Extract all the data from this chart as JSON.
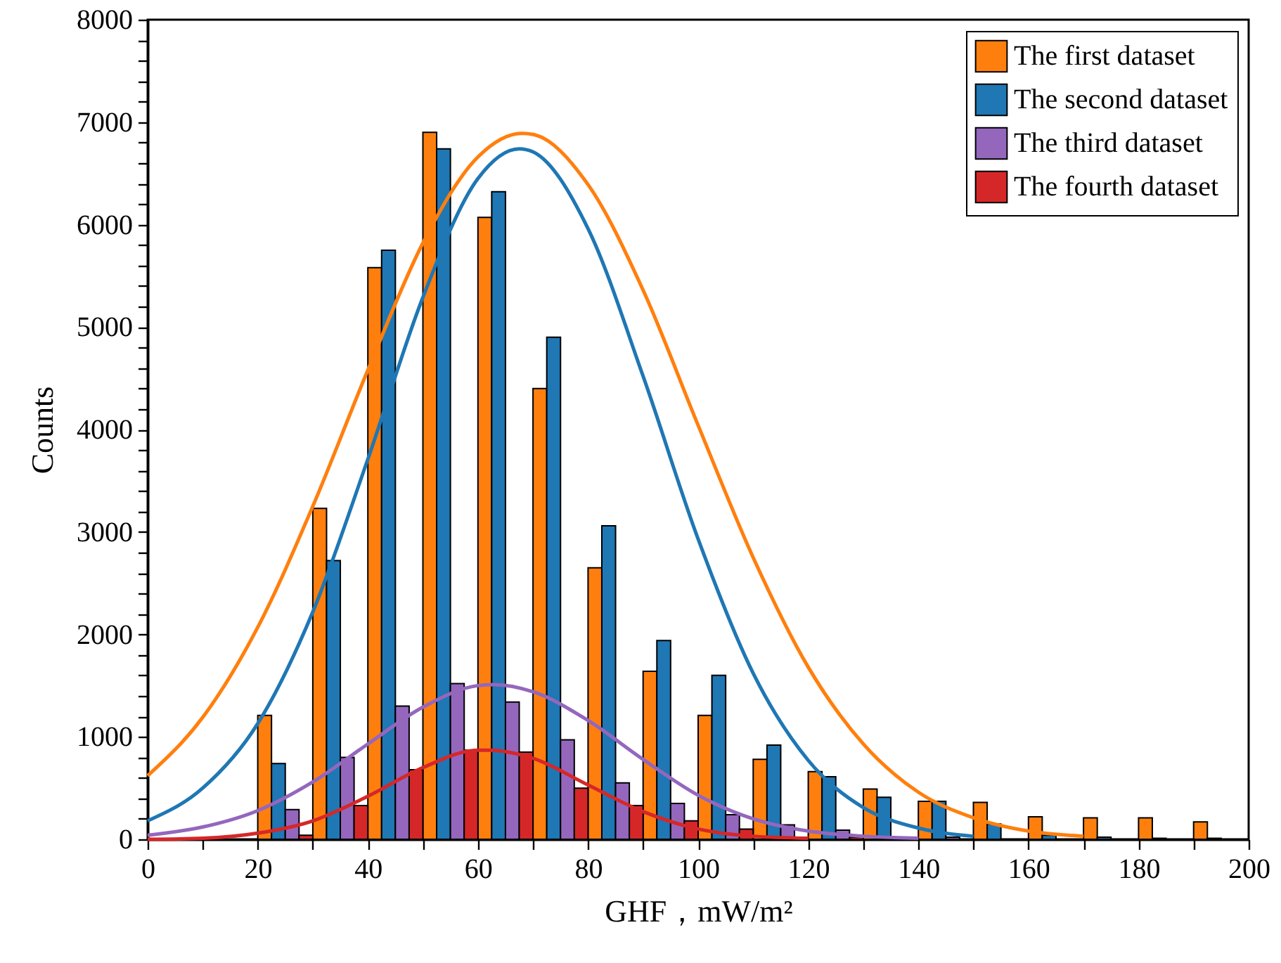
{
  "chart_data": {
    "type": "histogram",
    "xlabel": "GHF，mW/m²",
    "ylabel": "Counts",
    "bins": [
      20,
      30,
      40,
      50,
      60,
      70,
      80,
      90,
      100,
      110,
      120,
      130,
      140,
      150,
      160,
      170,
      180,
      190,
      200
    ],
    "xlim": [
      0,
      200
    ],
    "ylim": [
      0,
      8000
    ],
    "xticks": [
      0,
      {
        "value": 10,
        "label": null
      },
      20,
      {
        "value": 30,
        "label": null
      },
      40,
      {
        "value": 50,
        "label": null
      },
      60,
      {
        "value": 70,
        "label": null
      },
      80,
      {
        "value": 90,
        "label": null
      },
      100,
      {
        "value": 110,
        "label": null
      },
      120,
      {
        "value": 130,
        "label": null
      },
      140,
      {
        "value": 150,
        "label": null
      },
      160,
      {
        "value": 170,
        "label": null
      },
      180,
      {
        "value": 190,
        "label": null
      },
      200
    ],
    "yticks": [
      0,
      {
        "value": 200,
        "label": null
      },
      {
        "value": 400,
        "label": null
      },
      {
        "value": 600,
        "label": null
      },
      {
        "value": 800,
        "label": null
      },
      1000,
      {
        "value": 1200,
        "label": null
      },
      {
        "value": 1400,
        "label": null
      },
      {
        "value": 1600,
        "label": null
      },
      {
        "value": 1800,
        "label": null
      },
      2000,
      {
        "value": 2200,
        "label": null
      },
      {
        "value": 2400,
        "label": null
      },
      {
        "value": 2600,
        "label": null
      },
      {
        "value": 2800,
        "label": null
      },
      3000,
      {
        "value": 3200,
        "label": null
      },
      {
        "value": 3400,
        "label": null
      },
      {
        "value": 3600,
        "label": null
      },
      {
        "value": 3800,
        "label": null
      },
      4000,
      {
        "value": 4200,
        "label": null
      },
      {
        "value": 4400,
        "label": null
      },
      {
        "value": 4600,
        "label": null
      },
      {
        "value": 4800,
        "label": null
      },
      5000,
      {
        "value": 5200,
        "label": null
      },
      {
        "value": 5400,
        "label": null
      },
      {
        "value": 5600,
        "label": null
      },
      {
        "value": 5800,
        "label": null
      },
      6000,
      {
        "value": 6200,
        "label": null
      },
      {
        "value": 6400,
        "label": null
      },
      {
        "value": 6600,
        "label": null
      },
      {
        "value": 6800,
        "label": null
      },
      7000,
      {
        "value": 7200,
        "label": null
      },
      {
        "value": 7400,
        "label": null
      },
      {
        "value": 7600,
        "label": null
      },
      {
        "value": 7800,
        "label": null
      },
      8000
    ],
    "grid": false,
    "legend": "top right",
    "series": [
      {
        "name": "The first dataset",
        "color": "#ff7f0e",
        "values": [
          1210,
          3230,
          5580,
          6900,
          6070,
          4400,
          2650,
          1640,
          1210,
          780,
          660,
          490,
          370,
          360,
          220,
          210,
          210,
          170
        ]
      },
      {
        "name": "The second dataset",
        "color": "#1f77b4",
        "values": [
          740,
          2720,
          5750,
          6740,
          6320,
          4900,
          3060,
          1940,
          1600,
          920,
          610,
          410,
          370,
          150,
          40,
          20,
          10,
          10
        ]
      },
      {
        "name": "The third dataset",
        "color": "#9467bd",
        "values": [
          290,
          800,
          1300,
          1520,
          1340,
          970,
          550,
          350,
          240,
          140,
          90,
          null,
          20,
          0,
          0,
          0,
          0,
          0
        ]
      },
      {
        "name": "The fourth dataset",
        "color": "#d62728",
        "values": [
          40,
          330,
          680,
          870,
          850,
          500,
          330,
          180,
          100,
          null,
          20,
          null,
          0,
          0,
          0,
          0,
          0,
          0
        ]
      },
      {
        "type": "line",
        "color": "#ff7f0e",
        "x": [
          0,
          10,
          20,
          30,
          40,
          50,
          60,
          68,
          70,
          80,
          90,
          100,
          110,
          120,
          130,
          140,
          150,
          160,
          170
        ],
        "values": [
          620,
          1190,
          2070,
          3250,
          4580,
          5820,
          6660,
          6890,
          6880,
          6390,
          5360,
          4040,
          2750,
          1680,
          930,
          460,
          210,
          80,
          30
        ]
      },
      {
        "type": "line",
        "color": "#1f77b4",
        "x": [
          0,
          10,
          20,
          30,
          40,
          50,
          60,
          67.5,
          70,
          80,
          90,
          100,
          110,
          120,
          130,
          140,
          150
        ],
        "values": [
          180,
          500,
          1130,
          2220,
          3710,
          5290,
          6450,
          6740,
          6710,
          5960,
          4520,
          2930,
          1620,
          770,
          310,
          110,
          30
        ]
      },
      {
        "type": "line",
        "color": "#9467bd",
        "x": [
          0,
          10,
          20,
          30,
          40,
          50,
          60,
          63,
          70,
          80,
          90,
          100,
          110,
          120,
          130,
          140
        ],
        "values": [
          40,
          120,
          280,
          560,
          930,
          1290,
          1500,
          1510,
          1440,
          1160,
          780,
          430,
          200,
          80,
          30,
          10
        ]
      },
      {
        "type": "line",
        "color": "#d62728",
        "x": [
          0,
          10,
          20,
          30,
          40,
          50,
          60,
          62,
          70,
          80,
          90,
          100,
          110,
          120
        ],
        "values": [
          0,
          10,
          60,
          180,
          420,
          700,
          870,
          870,
          790,
          530,
          270,
          100,
          30,
          10
        ]
      }
    ]
  }
}
